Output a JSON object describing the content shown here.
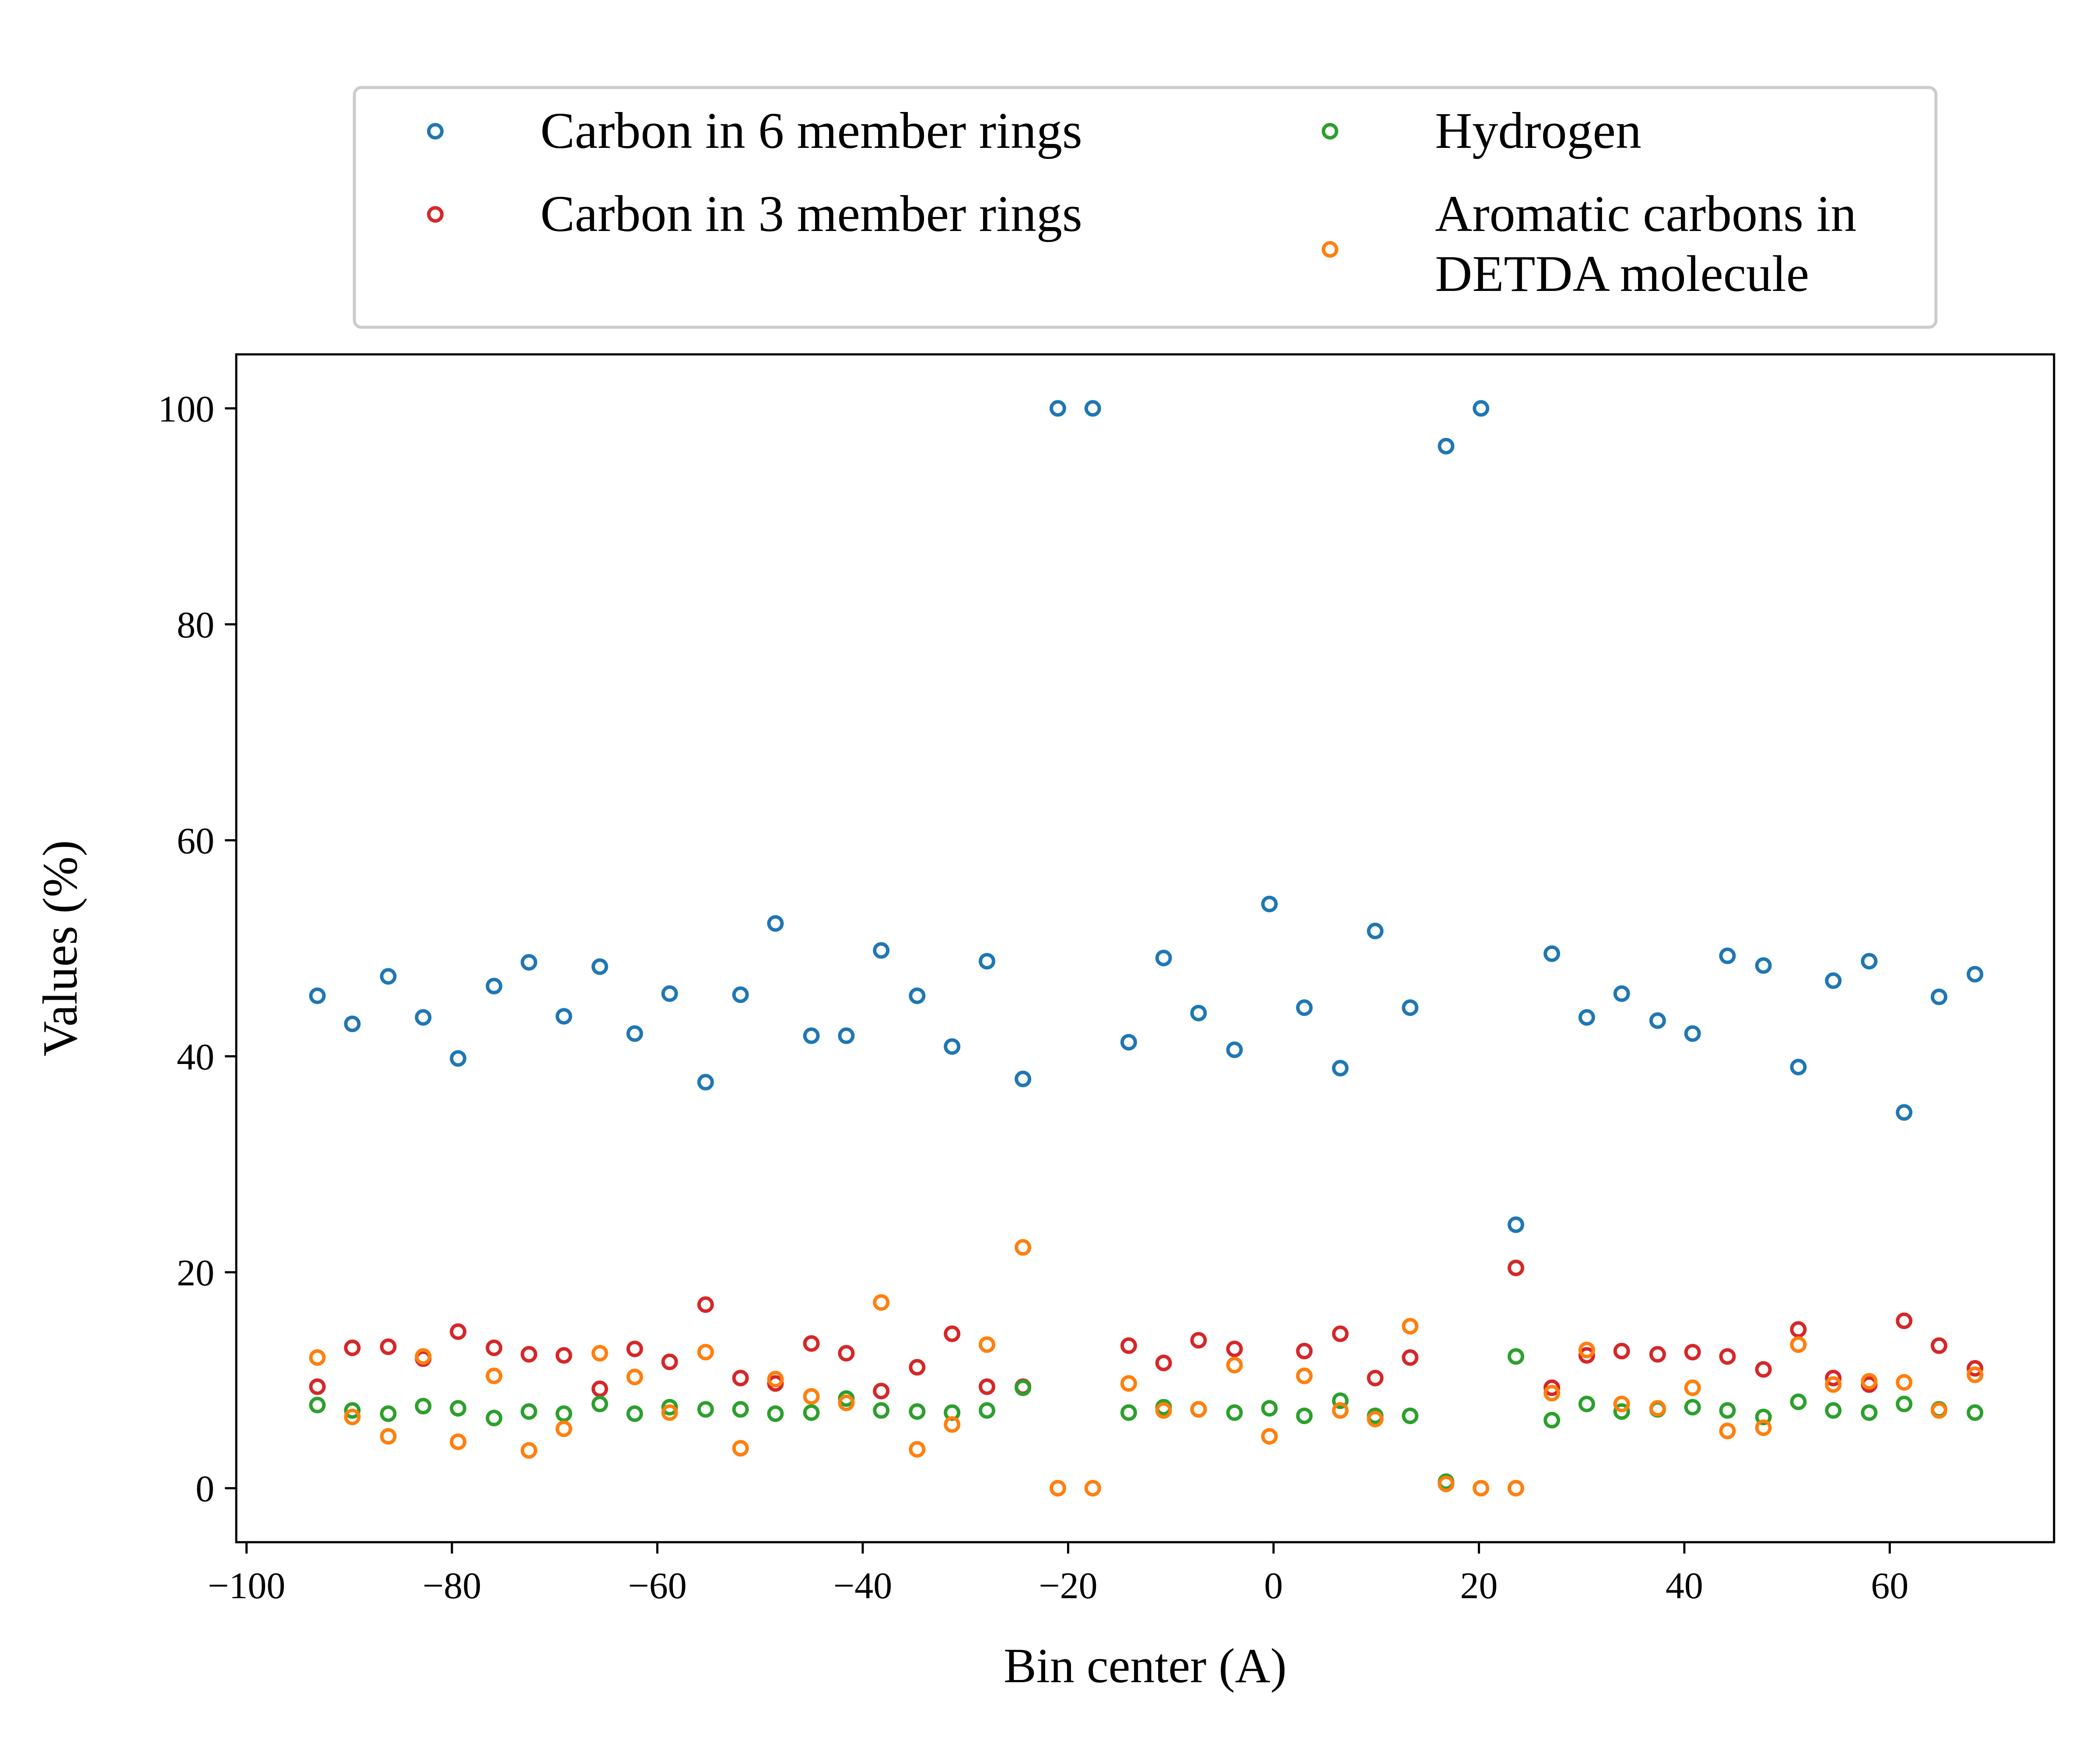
{
  "chart_data": {
    "type": "scatter",
    "xlabel": "Bin center (A)",
    "ylabel": "Values (%)",
    "xlim": [
      -101,
      76
    ],
    "ylim": [
      -5,
      105
    ],
    "x_ticks": [
      -100,
      -80,
      -60,
      -40,
      -20,
      0,
      20,
      40,
      60
    ],
    "y_ticks": [
      0,
      20,
      40,
      60,
      80,
      100
    ],
    "x_tick_labels": [
      "−100",
      "−80",
      "−60",
      "−40",
      "−20",
      "0",
      "20",
      "40",
      "60"
    ],
    "y_tick_labels": [
      "0",
      "20",
      "40",
      "60",
      "80",
      "100"
    ],
    "grid": false,
    "legend_position": "above plot, centered, two columns",
    "x": [
      -93.1,
      -89.7,
      -86.2,
      -82.8,
      -79.4,
      -75.9,
      -72.5,
      -69.1,
      -65.6,
      -62.2,
      -58.8,
      -55.3,
      -51.9,
      -48.5,
      -45.0,
      -41.6,
      -38.2,
      -34.7,
      -31.3,
      -27.9,
      -24.4,
      -21.0,
      -17.6,
      -14.1,
      -10.7,
      -7.3,
      -3.8,
      -0.4,
      3.0,
      6.5,
      9.9,
      13.3,
      16.8,
      20.2,
      23.6,
      27.1,
      30.5,
      33.9,
      37.4,
      40.8,
      44.2,
      47.7,
      51.1,
      54.5,
      58.0,
      61.4,
      64.8,
      68.3
    ],
    "series": [
      {
        "name": "Carbon in 6 member rings",
        "color": "#1f77b4",
        "values": [
          45.6,
          43.0,
          47.4,
          43.6,
          39.8,
          46.5,
          48.7,
          43.7,
          48.3,
          42.1,
          45.8,
          37.6,
          45.7,
          52.3,
          41.9,
          41.9,
          49.8,
          45.6,
          40.9,
          48.8,
          37.9,
          100,
          100,
          41.3,
          49.1,
          44.0,
          40.6,
          54.1,
          44.5,
          38.9,
          51.6,
          44.5,
          96.5,
          100,
          24.4,
          49.5,
          43.6,
          45.8,
          43.3,
          42.1,
          49.3,
          48.4,
          39.0,
          47.0,
          48.8,
          34.8,
          45.5,
          47.6
        ]
      },
      {
        "name": "Carbon in 3 member rings",
        "color": "#d62728",
        "values": [
          9.4,
          13.0,
          13.1,
          12.0,
          14.5,
          13.0,
          12.4,
          12.3,
          9.2,
          12.9,
          11.7,
          17.0,
          10.2,
          9.7,
          13.4,
          12.5,
          9.0,
          11.2,
          14.3,
          9.4,
          9.4,
          null,
          null,
          13.2,
          11.6,
          13.7,
          12.9,
          null,
          12.7,
          14.3,
          10.2,
          12.1,
          null,
          null,
          20.4,
          9.3,
          12.3,
          12.7,
          12.4,
          12.6,
          12.2,
          11.0,
          14.7,
          10.2,
          9.6,
          15.5,
          13.2,
          11.1
        ]
      },
      {
        "name": "Hydrogen",
        "color": "#2ca02c",
        "values": [
          7.7,
          7.2,
          6.9,
          7.6,
          7.4,
          6.5,
          7.1,
          6.9,
          7.8,
          6.9,
          7.5,
          7.3,
          7.3,
          6.9,
          7.0,
          8.3,
          7.2,
          7.1,
          7.0,
          7.2,
          9.3,
          null,
          null,
          7.0,
          7.5,
          7.3,
          7.0,
          7.4,
          6.7,
          8.1,
          6.7,
          6.7,
          0.6,
          null,
          12.2,
          6.3,
          7.8,
          7.1,
          7.3,
          7.5,
          7.2,
          6.6,
          8.0,
          7.2,
          7.0,
          7.8,
          7.3,
          7.0
        ]
      },
      {
        "name": "Aromatic carbons in DETDA molecule",
        "color": "#ff7f0e",
        "values": [
          12.1,
          6.6,
          4.8,
          12.2,
          4.3,
          10.4,
          3.5,
          5.5,
          12.5,
          10.3,
          7.0,
          12.6,
          3.7,
          10.1,
          8.5,
          7.9,
          17.2,
          3.6,
          5.9,
          13.3,
          22.3,
          0.0,
          0.0,
          9.7,
          7.2,
          7.3,
          11.4,
          4.8,
          10.4,
          7.2,
          6.4,
          15.0,
          0.4,
          0.0,
          0.0,
          8.8,
          12.8,
          7.8,
          7.4,
          9.3,
          5.3,
          5.6,
          13.3,
          9.6,
          9.9,
          9.8,
          7.2,
          10.5
        ]
      }
    ]
  }
}
